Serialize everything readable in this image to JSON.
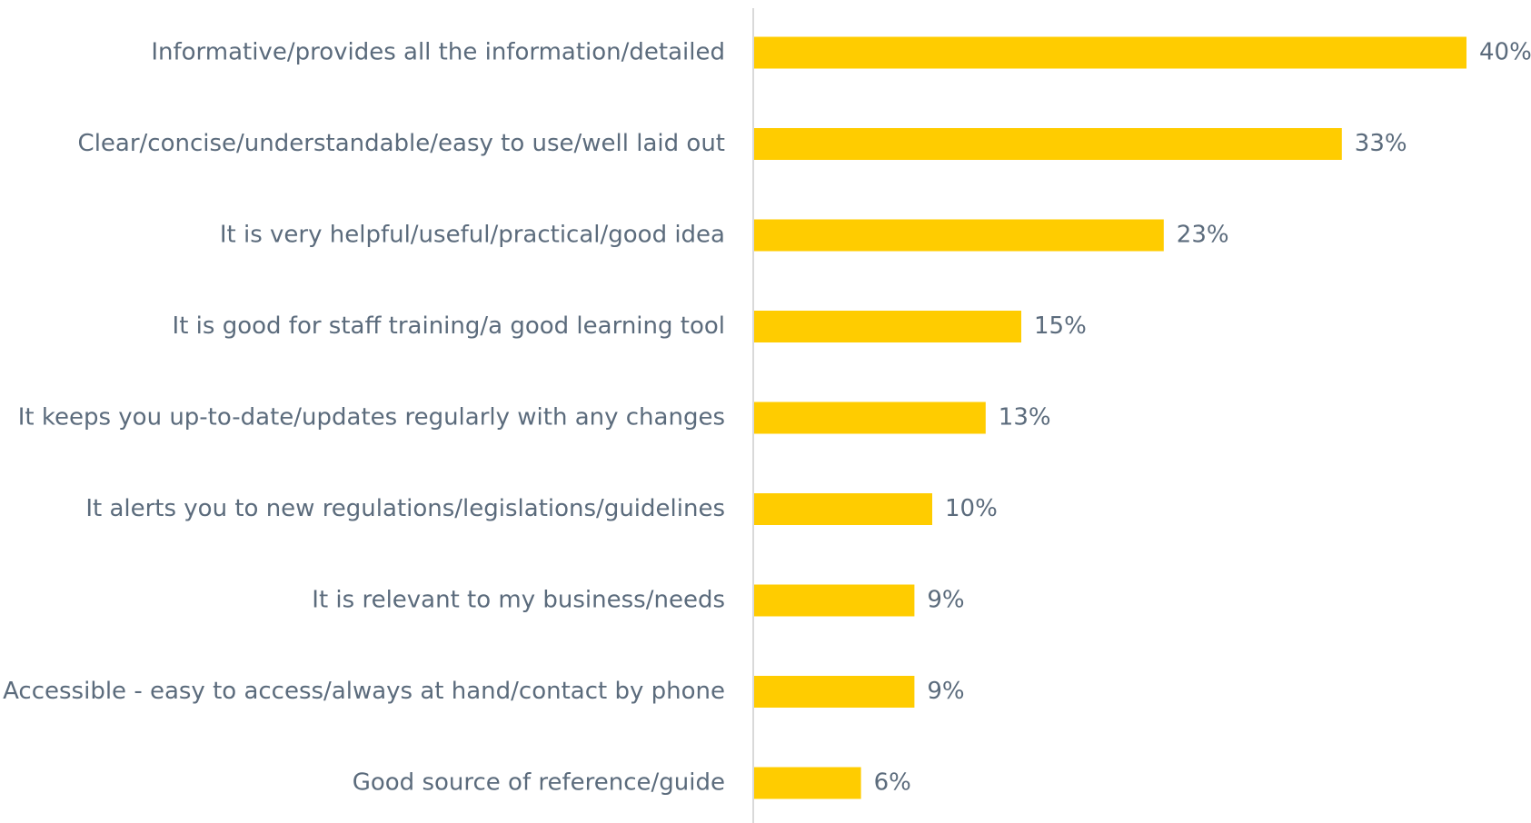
{
  "chart_data": {
    "type": "bar",
    "orientation": "horizontal",
    "categories": [
      "Informative/provides all the information/detailed",
      "Clear/concise/understandable/easy to use/well laid out",
      "It is very helpful/useful/practical/good idea",
      "It is good for staff training/a good learning tool",
      "It keeps you up-to-date/updates regularly with any changes",
      "It alerts you to new regulations/legislations/guidelines",
      "It is relevant to my business/needs",
      "Accessible - easy to access/always at hand/contact by phone",
      "Good source of reference/guide"
    ],
    "values": [
      40,
      33,
      23,
      15,
      13,
      10,
      9,
      9,
      6
    ],
    "value_labels": [
      "40%",
      "33%",
      "23%",
      "15%",
      "13%",
      "10%",
      "9%",
      "9%",
      "6%"
    ],
    "color": "#ffcc00"
  }
}
